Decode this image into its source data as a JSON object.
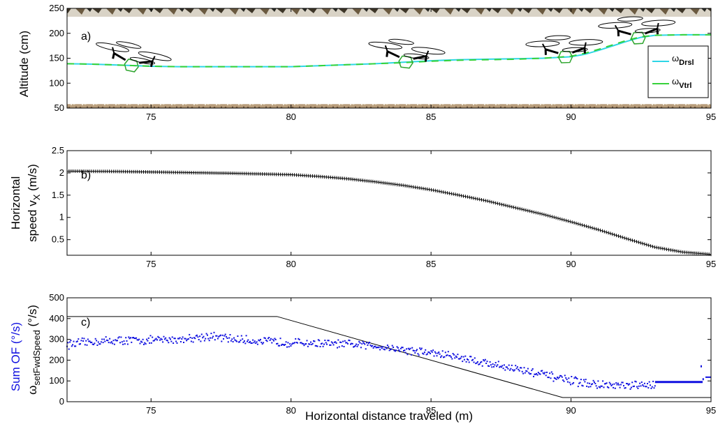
{
  "xlabel": "Horizontal distance traveled (m)",
  "colors": {
    "drsl": "#2ed6e6",
    "vtrl": "#36d23a",
    "sum_of": "#1010e0",
    "setpoint": "#000000"
  },
  "chart_data": [
    {
      "id": "a",
      "type": "line",
      "panel_label": "a)",
      "ylabel": "Altitude (cm)",
      "xlabel": "",
      "xlim": [
        72,
        95
      ],
      "ylim": [
        50,
        250
      ],
      "xticks": [
        75,
        80,
        85,
        90,
        95
      ],
      "yticks": [
        50,
        100,
        150,
        200,
        250
      ],
      "legend_position": "right",
      "background": "photo of vegetation above and ground below the flight path",
      "icons": [
        "quadrotor-icon",
        "quadrotor-icon",
        "quadrotor-icon",
        "quadrotor-icon"
      ],
      "series": [
        {
          "name": "ωDrsl",
          "name_main": "ω",
          "name_sub": "Drsl",
          "x": [
            72,
            73,
            74,
            75,
            76,
            77,
            78,
            79,
            80,
            81,
            82,
            83,
            84,
            85,
            86,
            87,
            88,
            89,
            90,
            90.5,
            91,
            91.5,
            92,
            92.5,
            93,
            94,
            95
          ],
          "y": [
            139,
            138,
            136,
            134,
            133,
            133,
            133,
            133,
            133,
            135,
            137,
            139,
            142,
            145,
            147,
            148,
            149,
            150,
            153,
            158,
            166,
            175,
            184,
            192,
            196,
            197,
            197
          ]
        },
        {
          "name": "ωVtrl",
          "name_main": "ω",
          "name_sub": "Vtrl",
          "x": [
            72,
            73,
            74,
            75,
            76,
            77,
            78,
            79,
            80,
            81,
            82,
            83,
            84,
            85,
            86,
            87,
            88,
            89,
            90,
            90.5,
            91,
            91.5,
            92,
            92.5,
            93,
            94,
            95
          ],
          "y": [
            139,
            138,
            136,
            134,
            133,
            133,
            133,
            133,
            133,
            135,
            137,
            139,
            141,
            144,
            146,
            147,
            148,
            150,
            154,
            160,
            168,
            177,
            186,
            193,
            196,
            197,
            197
          ]
        }
      ]
    },
    {
      "id": "b",
      "type": "line",
      "panel_label": "b)",
      "ylabel_line1": "Horizontal",
      "ylabel_line2": "speed v",
      "ylabel_sub": "X",
      "ylabel_unit": " (m/s)",
      "xlim": [
        72,
        95
      ],
      "ylim": [
        0.15,
        2.5
      ],
      "xticks": [
        75,
        80,
        85,
        90,
        95
      ],
      "yticks": [
        0.5,
        1,
        1.5,
        2,
        2.5
      ],
      "series": [
        {
          "x": [
            72,
            74,
            76,
            78,
            80,
            81,
            82,
            83,
            84,
            85,
            86,
            87,
            88,
            89,
            90,
            91,
            92,
            93,
            94,
            95
          ],
          "y": [
            2.04,
            2.03,
            2.01,
            1.99,
            1.96,
            1.92,
            1.87,
            1.8,
            1.72,
            1.62,
            1.5,
            1.37,
            1.22,
            1.07,
            0.9,
            0.72,
            0.52,
            0.33,
            0.22,
            0.17
          ]
        }
      ]
    },
    {
      "id": "c",
      "type": "scatter",
      "panel_label": "c)",
      "ylabel_sum": "Sum OF (°/s)",
      "ylabel_omega": "ω",
      "ylabel_sub": "setFwdSpeed",
      "ylabel_unit": " (°/s)",
      "xlim": [
        72,
        95
      ],
      "ylim": [
        0,
        500
      ],
      "xticks": [
        75,
        80,
        85,
        90,
        95
      ],
      "yticks": [
        0,
        100,
        200,
        300,
        400,
        500
      ],
      "setpoint": {
        "x": [
          72,
          79.5,
          89.7,
          95
        ],
        "y": [
          410,
          410,
          20,
          20
        ]
      },
      "sum_of": {
        "x": [
          72,
          73,
          74,
          75,
          76,
          77,
          78,
          79,
          80,
          81,
          82,
          83,
          84,
          85,
          86,
          87,
          88,
          89,
          90,
          91,
          92,
          93
        ],
        "y": [
          275,
          290,
          295,
          295,
          300,
          315,
          300,
          290,
          285,
          280,
          275,
          270,
          250,
          235,
          215,
          185,
          160,
          130,
          100,
          80,
          75,
          80
        ]
      },
      "sum_of_tail": {
        "x": [
          93,
          93.5,
          94,
          94.5,
          94.7
        ],
        "y": [
          95,
          95,
          95,
          95,
          95
        ]
      },
      "sum_of_end": {
        "x": [
          94.8,
          95
        ],
        "y": [
          118,
          118
        ]
      },
      "sum_of_outliers": {
        "x": [
          94.65,
          94.72
        ],
        "y": [
          172,
          110
        ]
      }
    }
  ]
}
